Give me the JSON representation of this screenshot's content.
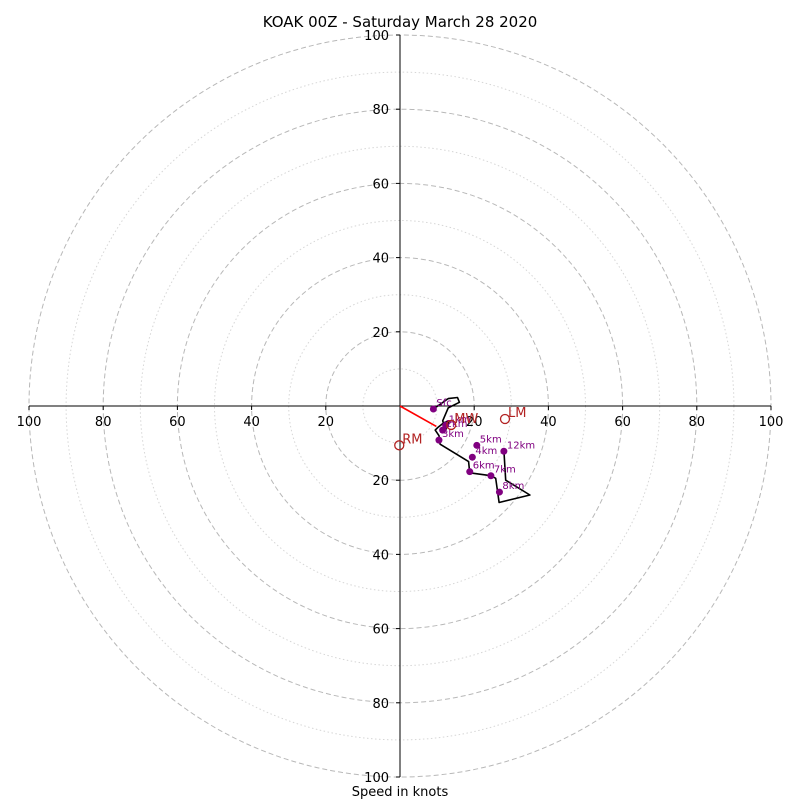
{
  "chart_data": {
    "type": "hodograph",
    "title": "KOAK 00Z - Saturday March 28 2020",
    "xlabel": "Speed in knots",
    "xlim": [
      -100,
      100
    ],
    "ylim": [
      -100,
      100
    ],
    "major_ring_step": 20,
    "minor_ring_step": 10,
    "x_ticks": [
      {
        "value": -100,
        "label": "100"
      },
      {
        "value": -80,
        "label": "80"
      },
      {
        "value": -60,
        "label": "60"
      },
      {
        "value": -40,
        "label": "40"
      },
      {
        "value": -20,
        "label": "20"
      },
      {
        "value": 20,
        "label": "20"
      },
      {
        "value": 40,
        "label": "40"
      },
      {
        "value": 60,
        "label": "60"
      },
      {
        "value": 80,
        "label": "80"
      },
      {
        "value": 100,
        "label": "100"
      }
    ],
    "y_ticks": [
      {
        "value": 100,
        "label": "100"
      },
      {
        "value": 80,
        "label": "80"
      },
      {
        "value": 60,
        "label": "60"
      },
      {
        "value": 40,
        "label": "40"
      },
      {
        "value": 20,
        "label": "20"
      },
      {
        "value": -20,
        "label": "20"
      },
      {
        "value": -40,
        "label": "40"
      },
      {
        "value": -60,
        "label": "60"
      },
      {
        "value": -80,
        "label": "80"
      },
      {
        "value": -100,
        "label": "100"
      }
    ],
    "hodograph_trace": {
      "color": "#000000",
      "points": [
        [
          9,
          -0.8
        ],
        [
          13,
          2
        ],
        [
          15.5,
          2.3
        ],
        [
          16,
          1
        ],
        [
          13,
          -0.5
        ],
        [
          11.5,
          -4
        ],
        [
          12.3,
          -6.5
        ],
        [
          13.3,
          -4
        ],
        [
          11.8,
          -4.5
        ],
        [
          10.2,
          -5.8
        ],
        [
          9.5,
          -6.5
        ],
        [
          10.5,
          -8
        ],
        [
          10.8,
          -10.3
        ],
        [
          18.5,
          -15
        ],
        [
          18.8,
          -18
        ],
        [
          24.5,
          -18.8
        ],
        [
          25.8,
          -19.5
        ],
        [
          26.7,
          -26
        ],
        [
          35,
          -24
        ],
        [
          28.5,
          -20
        ],
        [
          28,
          -12
        ]
      ]
    },
    "height_markers": {
      "color": "#800080",
      "points": [
        {
          "label": "Sfc",
          "u": 9,
          "v": -0.8
        },
        {
          "label": "1km",
          "u": 12.3,
          "v": -5.2
        },
        {
          "label": "2km",
          "u": 11.5,
          "v": -6.5
        },
        {
          "label": "3km",
          "u": 10.5,
          "v": -9.2
        },
        {
          "label": "4km",
          "u": 19.5,
          "v": -13.8
        },
        {
          "label": "5km",
          "u": 20.7,
          "v": -10.6
        },
        {
          "label": "6km",
          "u": 18.8,
          "v": -17.7
        },
        {
          "label": "7km",
          "u": 24.5,
          "v": -18.8
        },
        {
          "label": "8km",
          "u": 26.8,
          "v": -23.2
        },
        {
          "label": "12km",
          "u": 28,
          "v": -12.2
        }
      ]
    },
    "shear_vector": {
      "color": "#ff0000",
      "from": [
        0,
        0
      ],
      "to": [
        9.8,
        -5.5
      ]
    },
    "storm_motions": {
      "color": "#b22222",
      "points": [
        {
          "label": "LM",
          "u": 28.3,
          "v": -3.5
        },
        {
          "label": "RM",
          "u": -0.2,
          "v": -10.6
        },
        {
          "label": "MW",
          "u": 13.8,
          "v": -5.1
        }
      ]
    }
  }
}
